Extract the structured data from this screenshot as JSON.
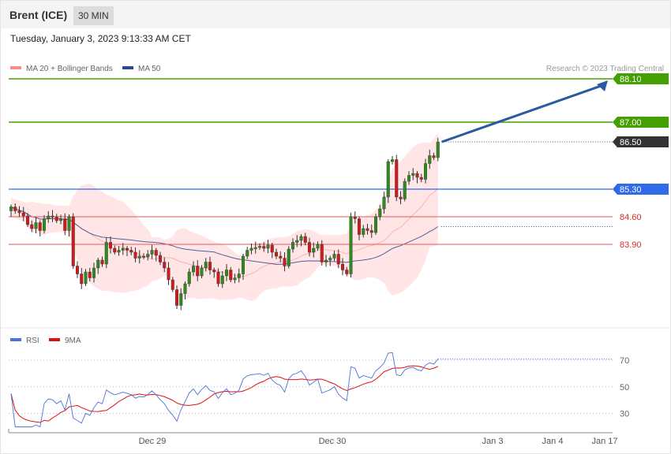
{
  "header": {
    "instrument": "Brent (ICE)",
    "timeframe": "30 MIN",
    "datetime": "Tuesday, January 3, 2023 9:13:33 AM CET"
  },
  "legend": {
    "ma20": "MA 20 + Bollinger Bands",
    "ma50": "MA 50",
    "copyright": "Research © 2023 Trading Central",
    "rsi": "RSI",
    "ma9": "9MA"
  },
  "chart_data": [
    {
      "type": "candlestick",
      "x_ticks": [
        "Dec 29",
        "Dec 30",
        "Jan 3",
        "Jan 4",
        "Jan 17"
      ],
      "levels": [
        {
          "value": 88.1,
          "label": "88.10",
          "kind": "resistance",
          "color": "#44a000"
        },
        {
          "value": 87.0,
          "label": "87.00",
          "kind": "resistance",
          "color": "#44a000"
        },
        {
          "value": 86.5,
          "label": "86.50",
          "kind": "last",
          "color": "#333333"
        },
        {
          "value": 85.3,
          "label": "85.30",
          "kind": "pivot",
          "color": "#2f6ae8"
        },
        {
          "value": 84.6,
          "label": "84.60",
          "kind": "support",
          "color": "#d52c2c"
        },
        {
          "value": 83.9,
          "label": "83.90",
          "kind": "support",
          "color": "#d52c2c"
        }
      ],
      "ylim": [
        81.8,
        88.2
      ],
      "closes": [
        84.85,
        84.75,
        84.7,
        84.62,
        84.4,
        84.3,
        84.45,
        84.25,
        84.55,
        84.62,
        84.6,
        84.5,
        84.55,
        84.25,
        84.6,
        83.35,
        83.15,
        82.9,
        83.2,
        83.05,
        83.3,
        83.5,
        83.4,
        83.95,
        83.8,
        83.7,
        83.75,
        83.8,
        83.75,
        83.7,
        83.55,
        83.6,
        83.58,
        83.65,
        83.75,
        83.62,
        83.45,
        83.3,
        83.0,
        82.75,
        82.35,
        82.65,
        82.9,
        83.2,
        83.35,
        83.1,
        83.3,
        83.45,
        83.25,
        83.2,
        82.9,
        83.1,
        83.25,
        83.0,
        83.05,
        83.15,
        83.6,
        83.75,
        83.8,
        83.82,
        83.85,
        83.8,
        83.88,
        83.7,
        83.6,
        83.55,
        83.35,
        83.78,
        83.95,
        84.0,
        84.1,
        83.95,
        83.7,
        83.8,
        83.9,
        83.45,
        83.5,
        83.55,
        83.65,
        83.4,
        83.25,
        83.15,
        84.6,
        84.55,
        84.15,
        84.3,
        84.25,
        84.2,
        84.6,
        84.8,
        85.1,
        86.0,
        86.05,
        85.1,
        85.05,
        85.5,
        85.65,
        85.7,
        85.6,
        85.55,
        85.95,
        86.15,
        86.1,
        86.5
      ],
      "series": [
        {
          "name": "MA 20 + Bollinger Bands",
          "color": "#ffb2b2"
        },
        {
          "name": "MA 50",
          "color": "#2e4a8e"
        }
      ],
      "projection": {
        "from": 86.5,
        "to": 88.1
      }
    },
    {
      "type": "line",
      "series": [
        {
          "name": "RSI",
          "color": "#4a72d8"
        },
        {
          "name": "9MA",
          "color": "#dd1111"
        }
      ],
      "y_ticks": [
        "70",
        "50",
        "30"
      ],
      "ylim": [
        18,
        80
      ]
    }
  ]
}
